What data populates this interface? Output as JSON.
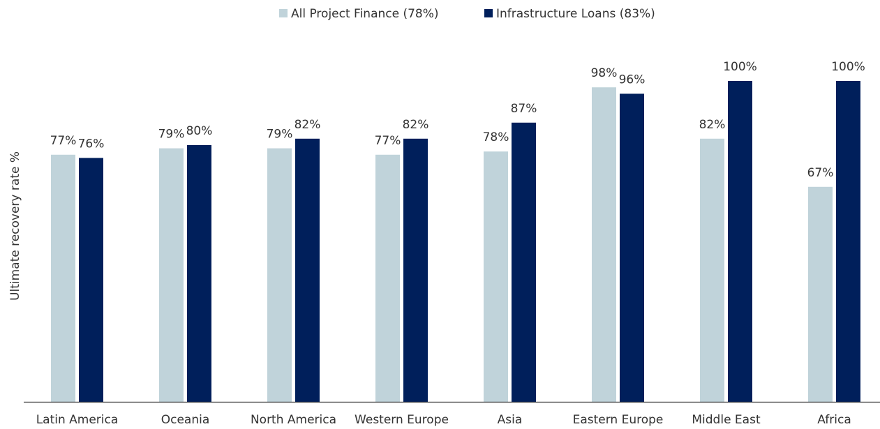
{
  "chart_data": {
    "type": "bar",
    "y_label": "Ultimate recovery rate %",
    "categories": [
      "Latin America",
      "Oceania",
      "North America",
      "Western Europe",
      "Asia",
      "Eastern Europe",
      "Middle East",
      "Africa"
    ],
    "series": [
      {
        "name": "All Project Finance (78%)",
        "color": "#c0d3da",
        "values": [
          77,
          79,
          79,
          77,
          78,
          98,
          82,
          67
        ],
        "value_labels": [
          "77%",
          "79%",
          "79%",
          "77%",
          "78%",
          "98%",
          "82%",
          "67%"
        ]
      },
      {
        "name": "Infrastructure Loans (83%)",
        "color": "#001f5b",
        "values": [
          76,
          80,
          82,
          82,
          87,
          96,
          100,
          100
        ],
        "value_labels": [
          "76%",
          "80%",
          "82%",
          "82%",
          "87%",
          "96%",
          "100%",
          "100%"
        ]
      }
    ],
    "ylim": [
      0,
      100
    ],
    "legend": "top"
  }
}
